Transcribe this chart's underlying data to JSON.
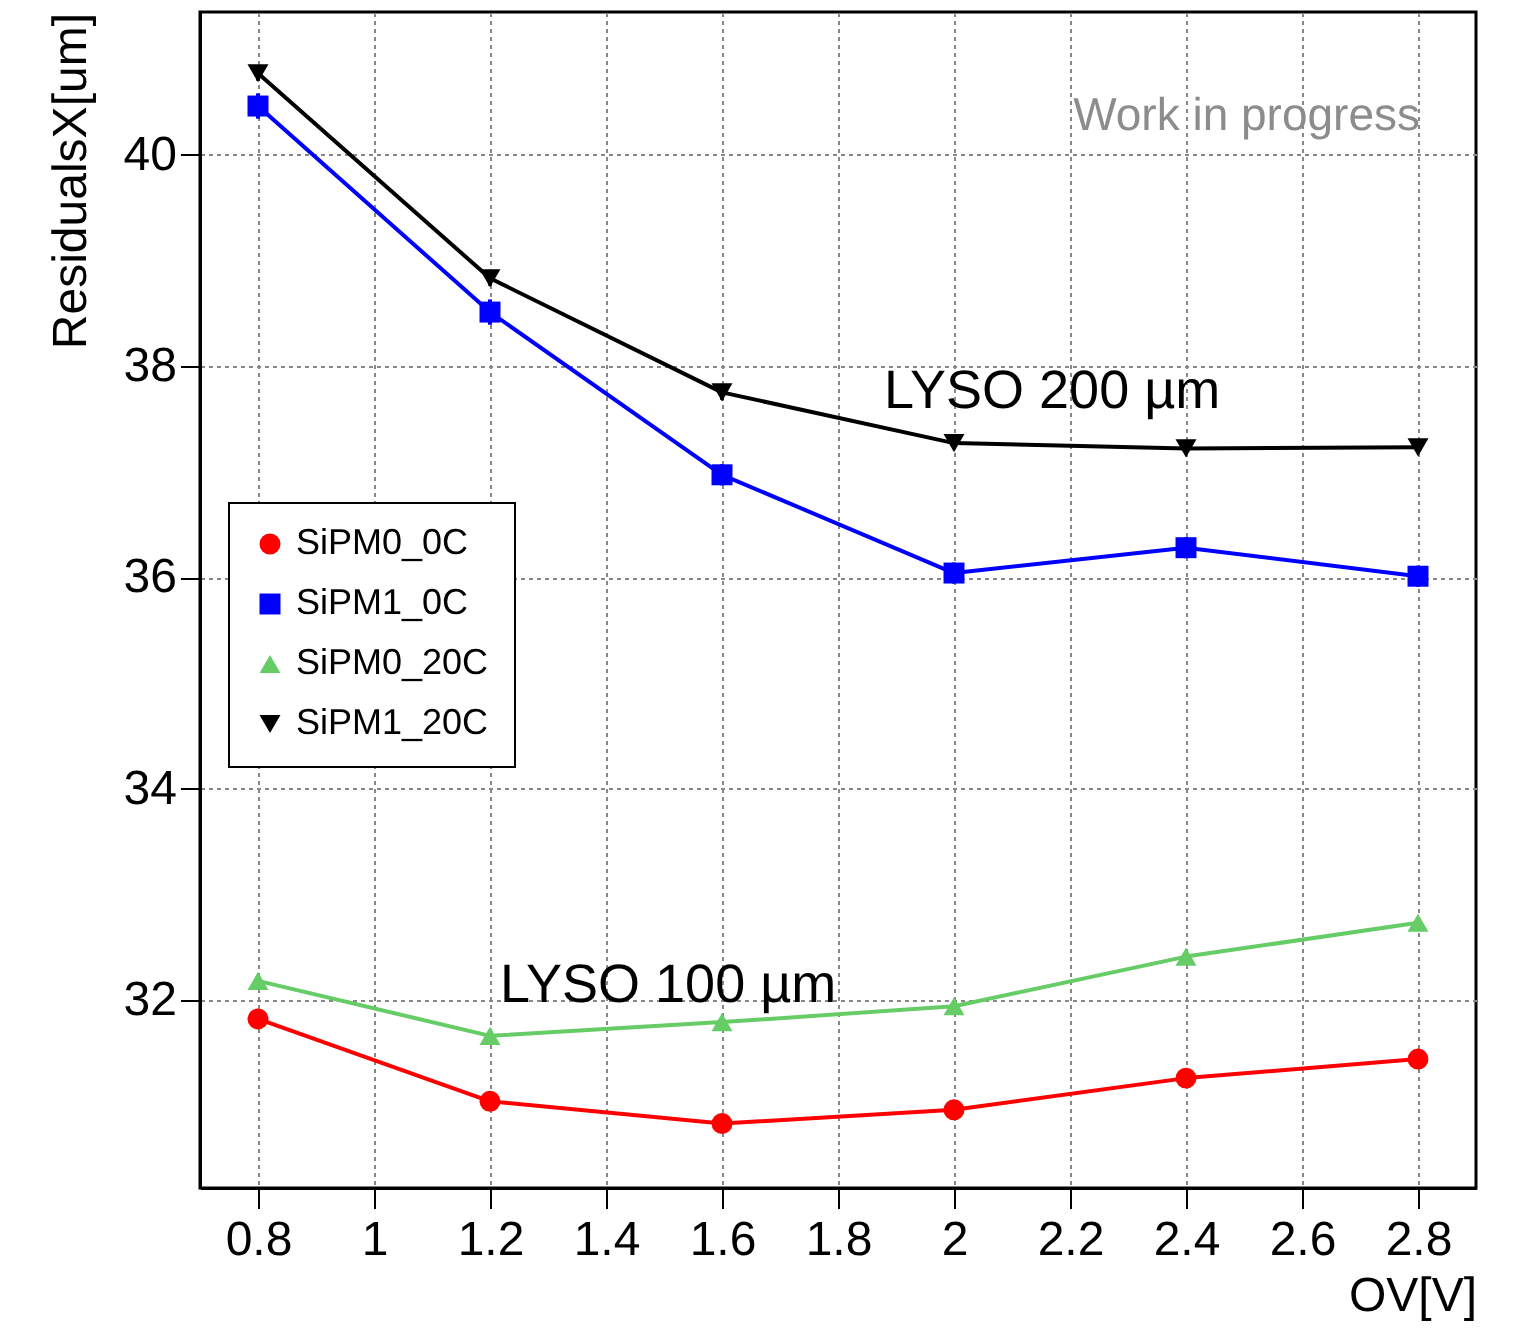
{
  "chart_data": {
    "type": "line",
    "xlabel": "OV[V]",
    "ylabel": "ResidualsX[um]",
    "x": [
      0.8,
      1.2,
      1.6,
      2.0,
      2.4,
      2.8
    ],
    "series": [
      {
        "name": "SiPM0_0C",
        "color": "#ff0000",
        "marker": "circle",
        "values": [
          31.82,
          31.04,
          30.83,
          30.96,
          31.26,
          31.44
        ],
        "errors": [
          0.08,
          0.08,
          0.08,
          0.08,
          0.08,
          0.08
        ]
      },
      {
        "name": "SiPM1_0C",
        "color": "#0000ff",
        "marker": "square",
        "values": [
          40.46,
          38.51,
          36.97,
          36.04,
          36.28,
          36.01
        ],
        "errors": [
          0.12,
          0.12,
          0.1,
          0.1,
          0.1,
          0.1
        ]
      },
      {
        "name": "SiPM0_20C",
        "color": "#66cc66",
        "marker": "triangle",
        "values": [
          32.18,
          31.66,
          31.79,
          31.94,
          32.41,
          32.73
        ]
      },
      {
        "name": "SiPM1_20C",
        "color": "#000000",
        "marker": "triangle-down",
        "values": [
          40.77,
          38.83,
          37.75,
          37.27,
          37.22,
          37.23
        ],
        "errors": [
          0.07,
          0.07,
          0.07,
          0.05,
          0.05,
          0.05
        ]
      }
    ],
    "xlim": [
      0.7,
      2.9
    ],
    "ylim": [
      30.22,
      41.35
    ],
    "xticks": [
      0.8,
      1,
      1.2,
      1.4,
      1.6,
      1.8,
      2,
      2.2,
      2.4,
      2.6,
      2.8
    ],
    "yticks": [
      32,
      34,
      36,
      38,
      40
    ],
    "grid": true,
    "legend": "left",
    "annotations": [
      "LYSO 200 µm",
      "LYSO 100 µm",
      "Work in progress"
    ]
  }
}
